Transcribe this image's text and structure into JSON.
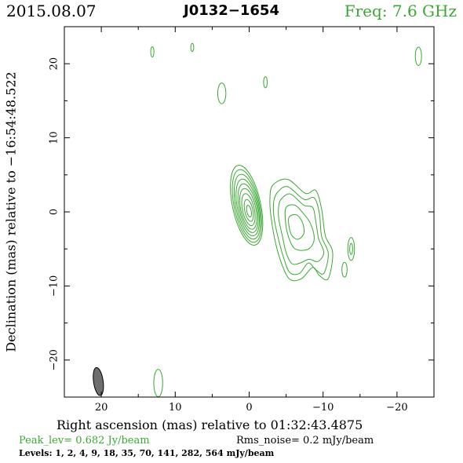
{
  "header": {
    "date": "2015.08.07",
    "source": "J0132−1654",
    "frequency": "Freq: 7.6 GHz"
  },
  "colors": {
    "contour": "#3aa832",
    "frame": "#000000",
    "beam": "#6e6e6e"
  },
  "chart_data": {
    "type": "contour",
    "xlabel": "Right ascension (mas) relative to 01:32:43.4875",
    "ylabel": "Declination (mas) relative to −16:54:48.522",
    "xlim": [
      25.0,
      -25.0
    ],
    "ylim": [
      -25.0,
      25.0
    ],
    "x_ticks": [
      {
        "value": 20,
        "label": "20"
      },
      {
        "value": 10,
        "label": "10"
      },
      {
        "value": 0,
        "label": "0"
      },
      {
        "value": -10,
        "label": "−10"
      },
      {
        "value": -20,
        "label": "−20"
      }
    ],
    "y_ticks": [
      {
        "value": 20,
        "label": "20"
      },
      {
        "value": 10,
        "label": "10"
      },
      {
        "value": 0,
        "label": "0"
      },
      {
        "value": -10,
        "label": "−10"
      },
      {
        "value": -20,
        "label": "−20"
      }
    ],
    "peak_level": "Peak_lev=  0.682 Jy/beam",
    "rms_noise": "Rms_noise=  0.2 mJy/beam",
    "levels_text": "Levels:   1,   2,   4,   9,  18,  35,  70, 141, 282, 564 mJy/beam",
    "beam": {
      "ra": 20.4,
      "dec": -22.9,
      "major": 1.9,
      "minor": 0.65,
      "pa_deg": 8
    },
    "core": {
      "ra": 0.0,
      "dec": 0.0,
      "contours": [
        {
          "cx": 0.35,
          "cy": 0.9,
          "a": 1.9,
          "b": 5.5
        },
        {
          "cx": 0.3,
          "cy": 0.8,
          "a": 1.72,
          "b": 5.0
        },
        {
          "cx": 0.25,
          "cy": 0.7,
          "a": 1.55,
          "b": 4.45
        },
        {
          "cx": 0.2,
          "cy": 0.6,
          "a": 1.38,
          "b": 3.9
        },
        {
          "cx": 0.15,
          "cy": 0.5,
          "a": 1.2,
          "b": 3.35
        },
        {
          "cx": 0.12,
          "cy": 0.4,
          "a": 1.02,
          "b": 2.8
        },
        {
          "cx": 0.1,
          "cy": 0.3,
          "a": 0.8,
          "b": 2.2
        },
        {
          "cx": 0.05,
          "cy": 0.2,
          "a": 0.55,
          "b": 1.5
        },
        {
          "cx": 0.02,
          "cy": 0.1,
          "a": 0.3,
          "b": 0.8
        }
      ]
    },
    "jet_contours": [
      [
        [
          -3.2,
          3.6
        ],
        [
          -5.2,
          4.4
        ],
        [
          -7.6,
          2.5
        ],
        [
          -9.0,
          2.9
        ],
        [
          -9.8,
          0.4
        ],
        [
          -10.3,
          -3.2
        ],
        [
          -11.3,
          -5.5
        ],
        [
          -10.7,
          -9.0
        ],
        [
          -9.5,
          -8.6
        ],
        [
          -8.6,
          -7.5
        ],
        [
          -7.1,
          -9.0
        ],
        [
          -5.5,
          -9.1
        ],
        [
          -4.4,
          -7.0
        ],
        [
          -3.6,
          -4.3
        ],
        [
          -3.0,
          -1.0
        ],
        [
          -2.8,
          1.6
        ]
      ],
      [
        [
          -3.8,
          2.6
        ],
        [
          -5.2,
          3.4
        ],
        [
          -7.4,
          1.7
        ],
        [
          -8.8,
          1.9
        ],
        [
          -9.5,
          -0.2
        ],
        [
          -9.8,
          -3.3
        ],
        [
          -10.7,
          -5.6
        ],
        [
          -10.1,
          -8.3
        ],
        [
          -9.0,
          -7.8
        ],
        [
          -8.0,
          -6.9
        ],
        [
          -6.8,
          -8.3
        ],
        [
          -5.5,
          -8.2
        ],
        [
          -4.7,
          -6.3
        ],
        [
          -4.0,
          -3.8
        ],
        [
          -3.4,
          -1.0
        ],
        [
          -3.3,
          1.2
        ]
      ],
      [
        [
          -4.4,
          1.8
        ],
        [
          -5.6,
          2.4
        ],
        [
          -7.4,
          0.9
        ],
        [
          -8.6,
          0.6
        ],
        [
          -9.0,
          -1.2
        ],
        [
          -9.4,
          -3.6
        ],
        [
          -10.1,
          -5.5
        ],
        [
          -9.3,
          -6.7
        ],
        [
          -8.1,
          -6.4
        ],
        [
          -6.9,
          -6.9
        ],
        [
          -5.8,
          -7.0
        ],
        [
          -5.0,
          -5.5
        ],
        [
          -4.5,
          -3.3
        ],
        [
          -4.0,
          -0.9
        ],
        [
          -4.0,
          0.8
        ]
      ],
      [
        [
          -5.0,
          0.6
        ],
        [
          -6.2,
          0.9
        ],
        [
          -7.4,
          -0.3
        ],
        [
          -8.3,
          -1.6
        ],
        [
          -8.8,
          -3.6
        ],
        [
          -8.2,
          -4.9
        ],
        [
          -7.0,
          -5.2
        ],
        [
          -6.0,
          -4.8
        ],
        [
          -5.3,
          -3.3
        ],
        [
          -4.9,
          -1.2
        ]
      ],
      [
        [
          -5.4,
          -0.7
        ],
        [
          -6.4,
          -0.4
        ],
        [
          -7.2,
          -1.4
        ],
        [
          -7.4,
          -2.9
        ],
        [
          -6.6,
          -3.7
        ],
        [
          -5.8,
          -3.2
        ],
        [
          -5.4,
          -2.0
        ]
      ]
    ],
    "islands": [
      {
        "ra": -13.8,
        "dec": -5.0,
        "a": 0.45,
        "b": 1.55
      },
      {
        "ra": -13.8,
        "dec": -5.0,
        "a": 0.2,
        "b": 0.75
      },
      {
        "ra": -12.9,
        "dec": -7.8,
        "a": 0.35,
        "b": 1.0
      },
      {
        "ra": 3.7,
        "dec": 16.0,
        "a": 0.55,
        "b": 1.4
      },
      {
        "ra": -2.2,
        "dec": 17.5,
        "a": 0.25,
        "b": 0.75
      },
      {
        "ra": 13.1,
        "dec": 21.6,
        "a": 0.22,
        "b": 0.7
      },
      {
        "ra": 7.7,
        "dec": 22.2,
        "a": 0.2,
        "b": 0.55
      },
      {
        "ra": -22.9,
        "dec": 21.0,
        "a": 0.42,
        "b": 1.25
      },
      {
        "ra": 12.3,
        "dec": -23.1,
        "a": 0.6,
        "b": 1.85
      }
    ]
  }
}
